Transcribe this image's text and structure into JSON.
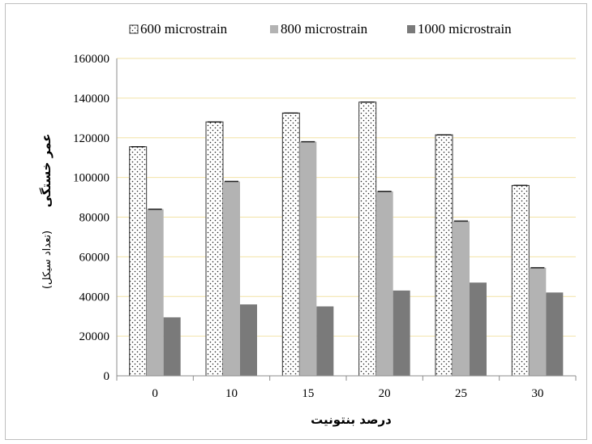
{
  "chart_data": {
    "type": "bar",
    "categories": [
      "0",
      "10",
      "15",
      "20",
      "25",
      "30"
    ],
    "series": [
      {
        "name": "600 microstrain",
        "values": [
          115500,
          128000,
          132500,
          138000,
          121500,
          96000
        ],
        "color": "#ffffff",
        "pattern": "dots"
      },
      {
        "name": "800 microstrain",
        "values": [
          84000,
          98000,
          118000,
          93000,
          78000,
          54500
        ],
        "color": "#b3b3b3"
      },
      {
        "name": "1000 microstrain",
        "values": [
          29500,
          36000,
          35000,
          43000,
          47000,
          42000
        ],
        "color": "#7a7a7a"
      }
    ],
    "ylim": [
      0,
      160000
    ],
    "yticks": [
      "0",
      "20000",
      "40000",
      "60000",
      "80000",
      "100000",
      "120000",
      "140000",
      "160000"
    ],
    "xlabel": "درصد بنتونیت",
    "ylabel_main": "عمر خستگی",
    "ylabel_sub": "(تعداد سیکل)",
    "grid": true,
    "grid_color": "#f2e2a6",
    "legend_position": "top"
  }
}
